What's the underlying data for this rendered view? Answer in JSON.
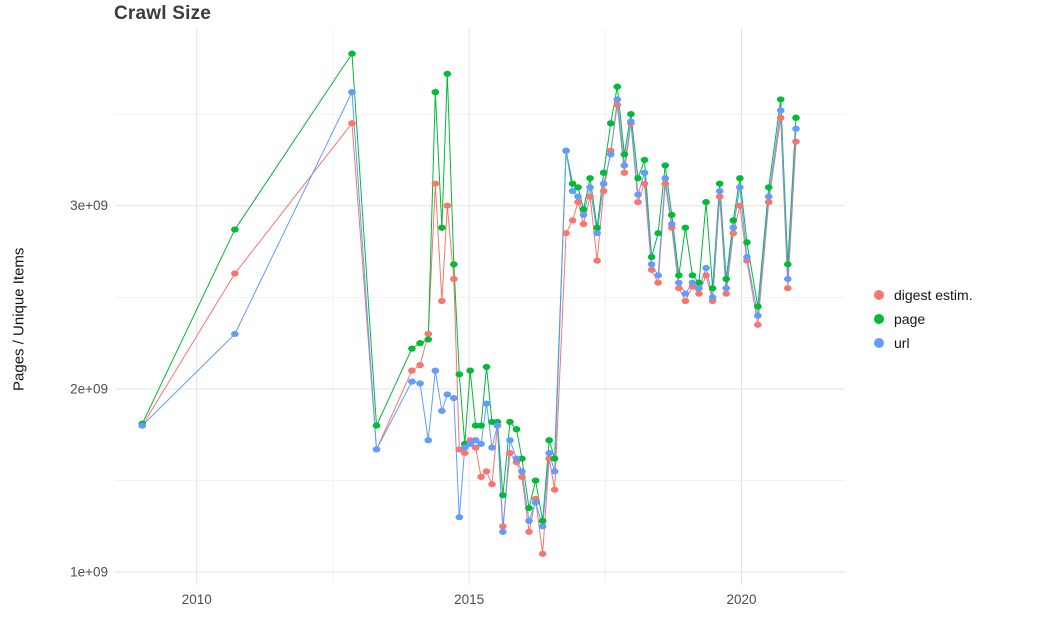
{
  "theme": {
    "background": "#ffffff",
    "grid_major": "#e3e3e3",
    "grid_minor": "#f2f2f2",
    "axis_text": "#4d4d4d",
    "title_color": "#3c3c3c"
  },
  "chart_data": {
    "type": "line",
    "title": "Crawl Size",
    "xlabel": "",
    "ylabel": "Pages / Unique Items",
    "x_unit": "year",
    "y_scale": 1000000000,
    "y_unit": "pages / unique items (multiply y by 1e9)",
    "xlim": [
      2008.5,
      2021.9
    ],
    "ylim": [
      0.93,
      3.97
    ],
    "x_ticks": [
      2010,
      2015,
      2020
    ],
    "x_tick_labels": [
      "2010",
      "2015",
      "2020"
    ],
    "x_minor_ticks": [
      2012.5,
      2017.5
    ],
    "y_ticks": [
      1,
      2,
      3
    ],
    "y_tick_labels": [
      "1e+09",
      "2e+09",
      "3e+09"
    ],
    "y_minor_ticks": [
      1.5,
      2.5,
      3.5
    ],
    "grid": true,
    "legend_position": "right",
    "marker": "point",
    "x": [
      2009.0,
      2010.7,
      2012.85,
      2013.3,
      2013.95,
      2014.1,
      2014.25,
      2014.38,
      2014.5,
      2014.6,
      2014.72,
      2014.82,
      2014.92,
      2015.02,
      2015.12,
      2015.22,
      2015.32,
      2015.42,
      2015.52,
      2015.62,
      2015.75,
      2015.87,
      2015.97,
      2016.1,
      2016.22,
      2016.35,
      2016.47,
      2016.57,
      2016.78,
      2016.9,
      2017.0,
      2017.1,
      2017.22,
      2017.35,
      2017.47,
      2017.6,
      2017.72,
      2017.85,
      2017.97,
      2018.1,
      2018.22,
      2018.35,
      2018.47,
      2018.6,
      2018.72,
      2018.85,
      2018.97,
      2019.1,
      2019.22,
      2019.35,
      2019.47,
      2019.6,
      2019.72,
      2019.85,
      2019.97,
      2020.1,
      2020.3,
      2020.5,
      2020.72,
      2020.85,
      2021.0
    ],
    "series": [
      {
        "name": "digest estim.",
        "color": "#F8766D",
        "y": [
          1.8,
          2.63,
          3.45,
          1.67,
          2.1,
          2.13,
          2.3,
          3.12,
          2.48,
          3.0,
          2.6,
          1.67,
          1.65,
          1.72,
          1.68,
          1.52,
          1.55,
          1.48,
          1.8,
          1.25,
          1.65,
          1.6,
          1.52,
          1.22,
          1.4,
          1.1,
          1.62,
          1.45,
          2.85,
          2.92,
          3.02,
          2.9,
          3.05,
          2.7,
          3.08,
          3.3,
          3.55,
          3.18,
          3.45,
          3.02,
          3.12,
          2.65,
          2.58,
          3.12,
          2.88,
          2.55,
          2.48,
          2.56,
          2.52,
          2.62,
          2.48,
          3.05,
          2.52,
          2.85,
          3.0,
          2.7,
          2.35,
          3.02,
          3.48,
          2.55,
          3.35
        ]
      },
      {
        "name": "page",
        "color": "#00BA38",
        "y": [
          1.81,
          2.87,
          3.83,
          1.8,
          2.22,
          2.25,
          2.27,
          3.62,
          2.88,
          3.72,
          2.68,
          2.08,
          1.7,
          2.1,
          1.8,
          1.8,
          2.12,
          1.82,
          1.82,
          1.42,
          1.82,
          1.78,
          1.62,
          1.35,
          1.5,
          1.28,
          1.72,
          1.62,
          3.3,
          3.12,
          3.1,
          2.98,
          3.15,
          2.88,
          3.18,
          3.45,
          3.65,
          3.28,
          3.5,
          3.15,
          3.25,
          2.72,
          2.85,
          3.22,
          2.95,
          2.62,
          2.88,
          2.62,
          2.58,
          3.02,
          2.55,
          3.12,
          2.6,
          2.92,
          3.15,
          2.8,
          2.45,
          3.1,
          3.58,
          2.68,
          3.48
        ]
      },
      {
        "name": "url",
        "color": "#619CFF",
        "y": [
          1.8,
          2.3,
          3.62,
          1.67,
          2.04,
          2.03,
          1.72,
          2.1,
          1.88,
          1.97,
          1.95,
          1.3,
          1.68,
          1.7,
          1.72,
          1.7,
          1.92,
          1.68,
          1.8,
          1.22,
          1.72,
          1.62,
          1.55,
          1.28,
          1.38,
          1.25,
          1.65,
          1.55,
          3.3,
          3.08,
          3.05,
          2.95,
          3.1,
          2.85,
          3.12,
          3.28,
          3.58,
          3.22,
          3.46,
          3.06,
          3.18,
          2.68,
          2.62,
          3.15,
          2.9,
          2.58,
          2.52,
          2.58,
          2.55,
          2.66,
          2.5,
          3.08,
          2.55,
          2.88,
          3.1,
          2.72,
          2.4,
          3.05,
          3.52,
          2.6,
          3.42
        ]
      }
    ]
  }
}
